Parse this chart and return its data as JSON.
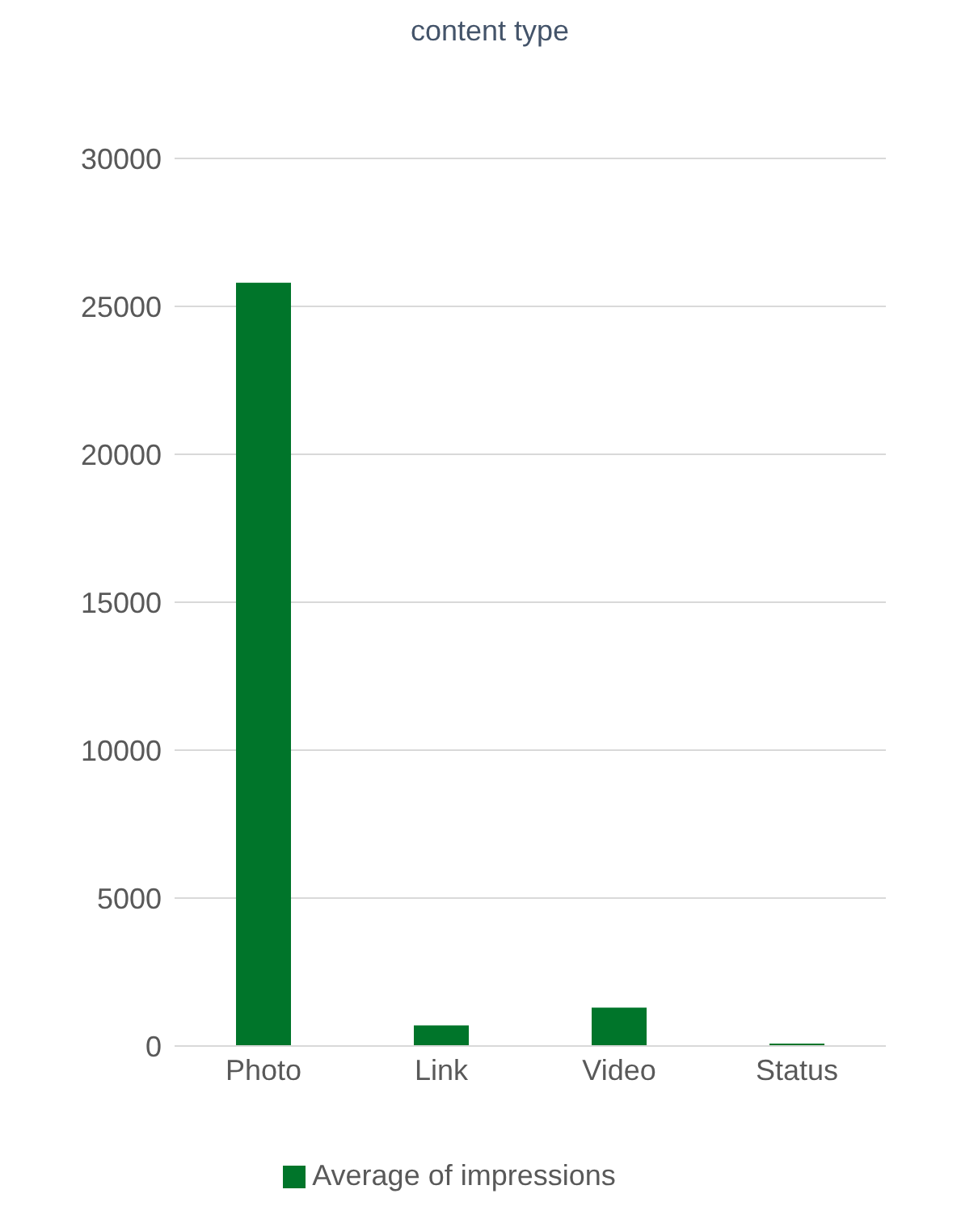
{
  "chart_data": {
    "type": "bar",
    "title": "content type",
    "categories": [
      "Photo",
      "Link",
      "Video",
      "Status"
    ],
    "series": [
      {
        "name": "Average of impressions",
        "color": "#00752a",
        "values": [
          25800,
          700,
          1300,
          80
        ]
      }
    ],
    "ylim": [
      0,
      30000
    ],
    "yticks": [
      0,
      5000,
      10000,
      15000,
      20000,
      25000,
      30000
    ],
    "grid": "y",
    "legend": "bottom"
  }
}
